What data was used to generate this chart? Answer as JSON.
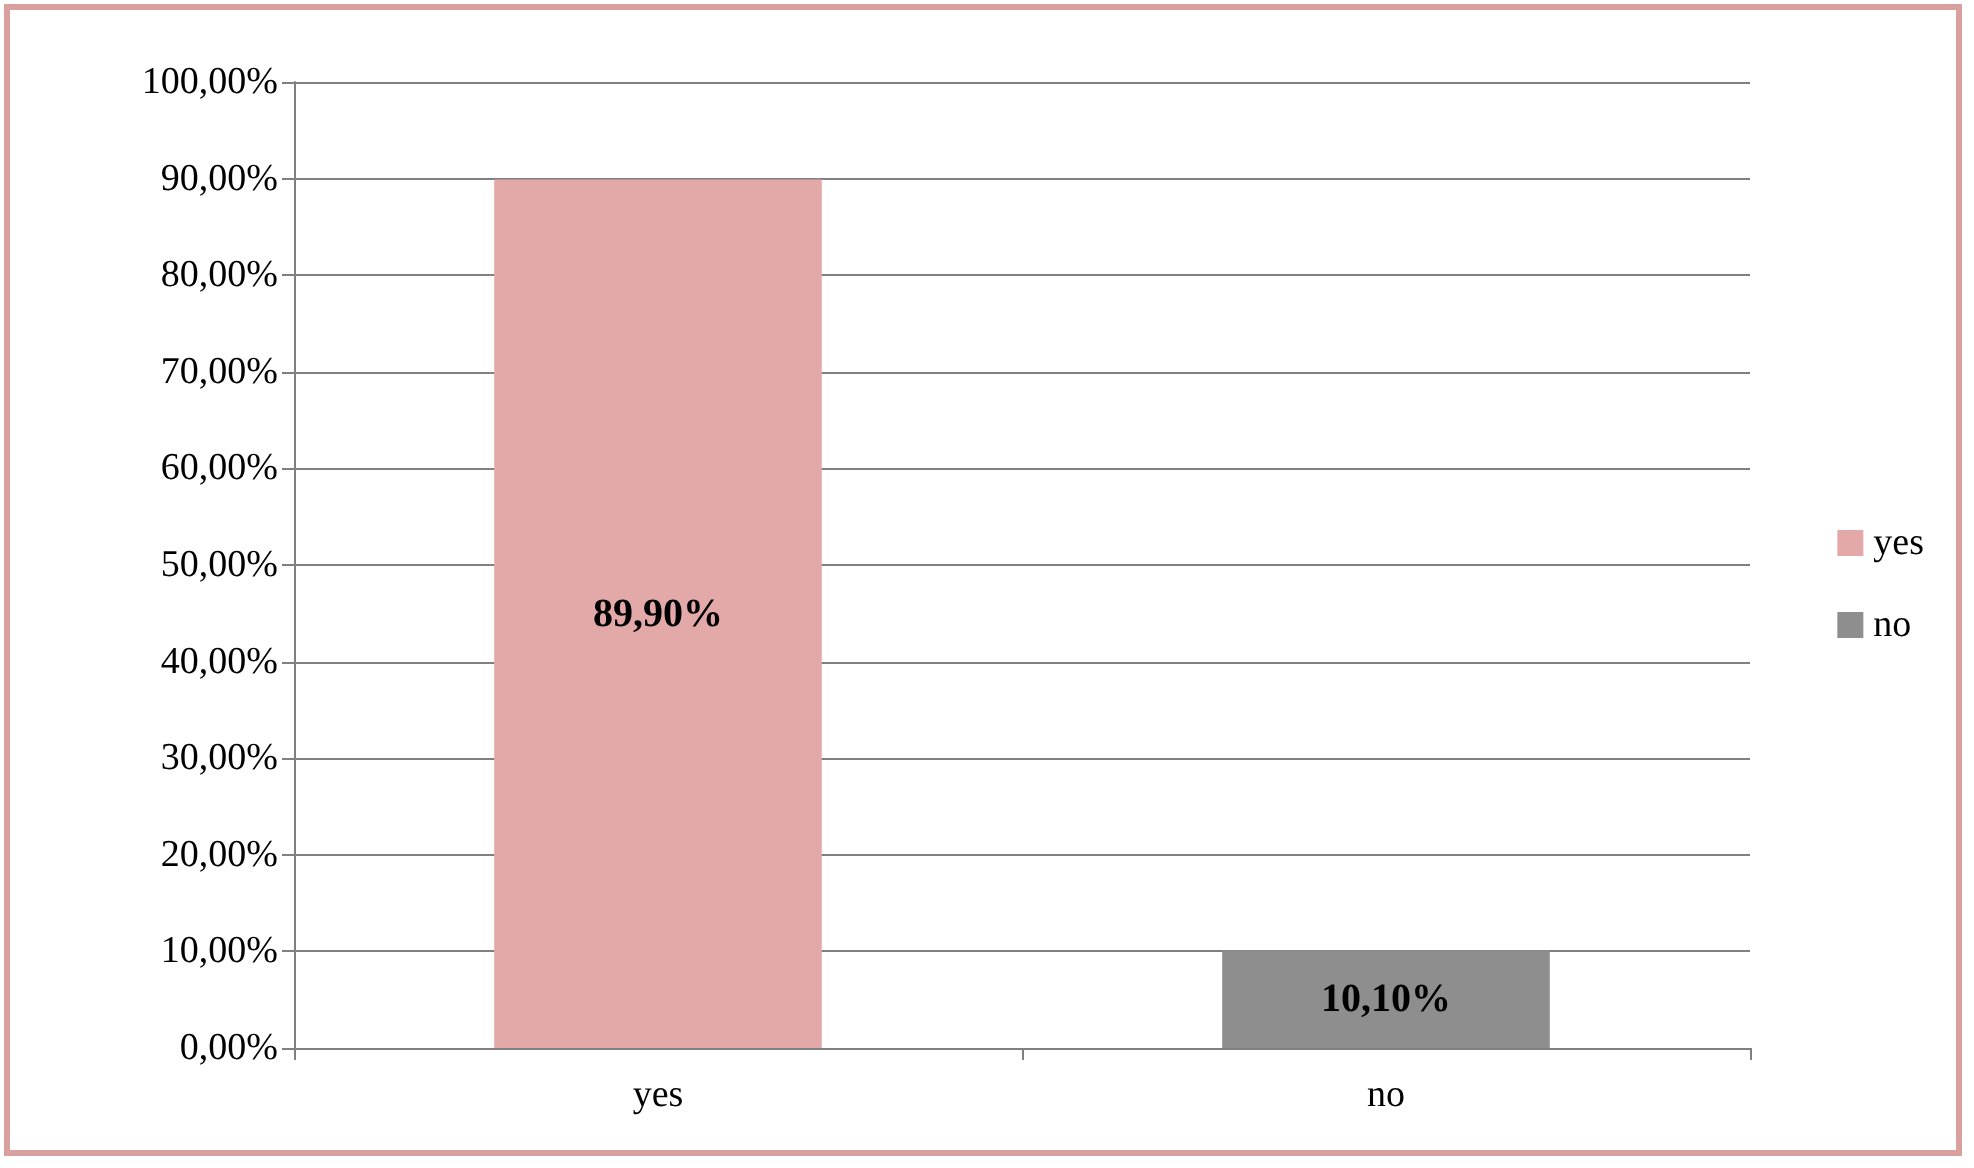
{
  "chart_data": {
    "type": "bar",
    "categories": [
      "yes",
      "no"
    ],
    "series": [
      {
        "name": "yes",
        "color": "#e3a9a9",
        "values": [
          89.9,
          null
        ],
        "value_labels": [
          "89,90%",
          null
        ]
      },
      {
        "name": "no",
        "color": "#8e8e8e",
        "values": [
          null,
          10.1
        ],
        "value_labels": [
          null,
          "10,10%"
        ]
      }
    ],
    "ylim": [
      0,
      100
    ],
    "yticks": [
      {
        "value": 0,
        "label": "0,00%"
      },
      {
        "value": 10,
        "label": "10,00%"
      },
      {
        "value": 20,
        "label": "20,00%"
      },
      {
        "value": 30,
        "label": "30,00%"
      },
      {
        "value": 40,
        "label": "40,00%"
      },
      {
        "value": 50,
        "label": "50,00%"
      },
      {
        "value": 60,
        "label": "60,00%"
      },
      {
        "value": 70,
        "label": "70,00%"
      },
      {
        "value": 80,
        "label": "80,00%"
      },
      {
        "value": 90,
        "label": "90,00%"
      },
      {
        "value": 100,
        "label": "100,00%"
      }
    ],
    "grid": "y",
    "legend": "right"
  }
}
